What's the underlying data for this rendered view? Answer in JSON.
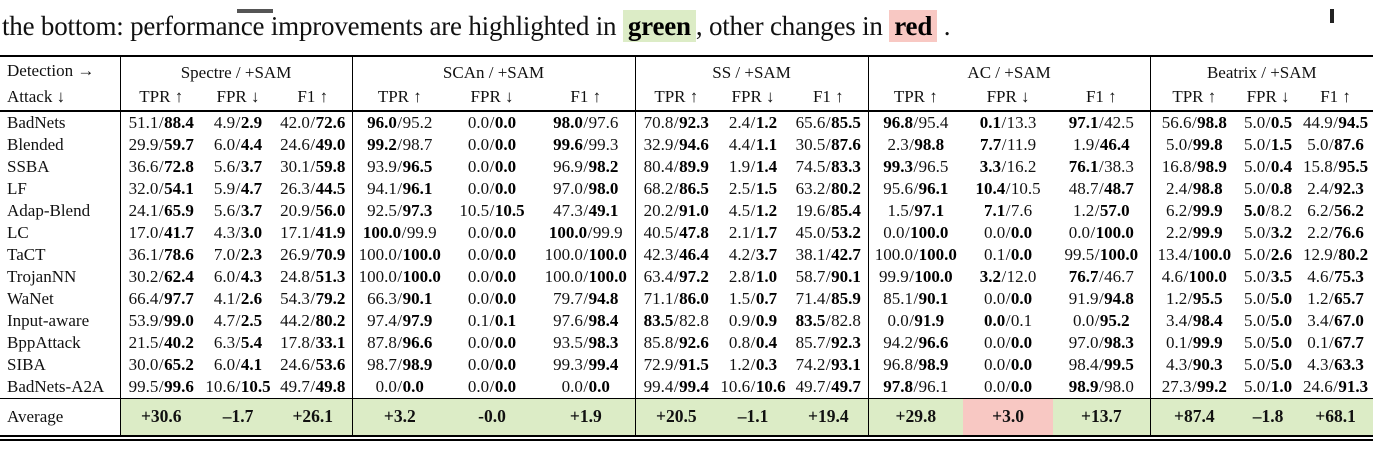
{
  "caption": {
    "prefix": "the bottom: performance improvements are highlighted in ",
    "green_word": "green",
    "mid": ", other changes in ",
    "red_word": "red",
    "suffix": " ."
  },
  "colors": {
    "green_highlight": "#dcecc6",
    "red_highlight": "#f8c8c3"
  },
  "table": {
    "sep": "/",
    "corner": {
      "line1": "Detection →",
      "line2": "Attack ↓"
    },
    "groups": [
      {
        "label": "Spectre / +SAM"
      },
      {
        "label": "SCAn / +SAM"
      },
      {
        "label": "SS / +SAM"
      },
      {
        "label": "AC / +SAM"
      },
      {
        "label": "Beatrix / +SAM"
      }
    ],
    "metrics": [
      "TPR ↑",
      "FPR ↓",
      "F1 ↑"
    ],
    "rows": [
      {
        "attack": "BadNets",
        "cells": [
          [
            "51.1",
            "88.4",
            "r"
          ],
          [
            "4.9",
            "2.9",
            "r"
          ],
          [
            "42.0",
            "72.6",
            "r"
          ],
          [
            "96.0",
            "95.2",
            "l"
          ],
          [
            "0.0",
            "0.0",
            "r"
          ],
          [
            "98.0",
            "97.6",
            "l"
          ],
          [
            "70.8",
            "92.3",
            "r"
          ],
          [
            "2.4",
            "1.2",
            "r"
          ],
          [
            "65.6",
            "85.5",
            "r"
          ],
          [
            "96.8",
            "95.4",
            "l"
          ],
          [
            "0.1",
            "13.3",
            "l"
          ],
          [
            "97.1",
            "42.5",
            "l"
          ],
          [
            "56.6",
            "98.8",
            "r"
          ],
          [
            "5.0",
            "0.5",
            "r"
          ],
          [
            "44.9",
            "94.5",
            "r"
          ]
        ]
      },
      {
        "attack": "Blended",
        "cells": [
          [
            "29.9",
            "59.7",
            "r"
          ],
          [
            "6.0",
            "4.4",
            "r"
          ],
          [
            "24.6",
            "49.0",
            "r"
          ],
          [
            "99.2",
            "98.7",
            "l"
          ],
          [
            "0.0",
            "0.0",
            "r"
          ],
          [
            "99.6",
            "99.3",
            "l"
          ],
          [
            "32.9",
            "94.6",
            "r"
          ],
          [
            "4.4",
            "1.1",
            "r"
          ],
          [
            "30.5",
            "87.6",
            "r"
          ],
          [
            "2.3",
            "98.8",
            "r"
          ],
          [
            "7.7",
            "11.9",
            "l"
          ],
          [
            "1.9",
            "46.4",
            "r"
          ],
          [
            "5.0",
            "99.8",
            "r"
          ],
          [
            "5.0",
            "1.5",
            "r"
          ],
          [
            "5.0",
            "87.6",
            "r"
          ]
        ]
      },
      {
        "attack": "SSBA",
        "cells": [
          [
            "36.6",
            "72.8",
            "r"
          ],
          [
            "5.6",
            "3.7",
            "r"
          ],
          [
            "30.1",
            "59.8",
            "r"
          ],
          [
            "93.9",
            "96.5",
            "r"
          ],
          [
            "0.0",
            "0.0",
            "r"
          ],
          [
            "96.9",
            "98.2",
            "r"
          ],
          [
            "80.4",
            "89.9",
            "r"
          ],
          [
            "1.9",
            "1.4",
            "r"
          ],
          [
            "74.5",
            "83.3",
            "r"
          ],
          [
            "99.3",
            "96.5",
            "l"
          ],
          [
            "3.3",
            "16.2",
            "l"
          ],
          [
            "76.1",
            "38.3",
            "l"
          ],
          [
            "16.8",
            "98.9",
            "r"
          ],
          [
            "5.0",
            "0.4",
            "r"
          ],
          [
            "15.8",
            "95.5",
            "r"
          ]
        ]
      },
      {
        "attack": "LF",
        "cells": [
          [
            "32.0",
            "54.1",
            "r"
          ],
          [
            "5.9",
            "4.7",
            "r"
          ],
          [
            "26.3",
            "44.5",
            "r"
          ],
          [
            "94.1",
            "96.1",
            "r"
          ],
          [
            "0.0",
            "0.0",
            "r"
          ],
          [
            "97.0",
            "98.0",
            "r"
          ],
          [
            "68.2",
            "86.5",
            "r"
          ],
          [
            "2.5",
            "1.5",
            "r"
          ],
          [
            "63.2",
            "80.2",
            "r"
          ],
          [
            "95.6",
            "96.1",
            "r"
          ],
          [
            "10.4",
            "10.5",
            "l"
          ],
          [
            "48.7",
            "48.7",
            "r"
          ],
          [
            "2.4",
            "98.8",
            "r"
          ],
          [
            "5.0",
            "0.8",
            "r"
          ],
          [
            "2.4",
            "92.3",
            "r"
          ]
        ]
      },
      {
        "attack": "Adap-Blend",
        "cells": [
          [
            "24.1",
            "65.9",
            "r"
          ],
          [
            "5.6",
            "3.7",
            "r"
          ],
          [
            "20.9",
            "56.0",
            "r"
          ],
          [
            "92.5",
            "97.3",
            "r"
          ],
          [
            "10.5",
            "10.5",
            "r"
          ],
          [
            "47.3",
            "49.1",
            "r"
          ],
          [
            "20.2",
            "91.0",
            "r"
          ],
          [
            "4.5",
            "1.2",
            "r"
          ],
          [
            "19.6",
            "85.4",
            "r"
          ],
          [
            "1.5",
            "97.1",
            "r"
          ],
          [
            "7.1",
            "7.6",
            "l"
          ],
          [
            "1.2",
            "57.0",
            "r"
          ],
          [
            "6.2",
            "99.9",
            "r"
          ],
          [
            "5.0",
            "8.2",
            "l"
          ],
          [
            "6.2",
            "56.2",
            "r"
          ]
        ]
      },
      {
        "attack": "LC",
        "cells": [
          [
            "17.0",
            "41.7",
            "r"
          ],
          [
            "4.3",
            "3.0",
            "r"
          ],
          [
            "17.1",
            "41.9",
            "r"
          ],
          [
            "100.0",
            "99.9",
            "l"
          ],
          [
            "0.0",
            "0.0",
            "r"
          ],
          [
            "100.0",
            "99.9",
            "l"
          ],
          [
            "40.5",
            "47.8",
            "r"
          ],
          [
            "2.1",
            "1.7",
            "r"
          ],
          [
            "45.0",
            "53.2",
            "r"
          ],
          [
            "0.0",
            "100.0",
            "r"
          ],
          [
            "0.0",
            "0.0",
            "r"
          ],
          [
            "0.0",
            "100.0",
            "r"
          ],
          [
            "2.2",
            "99.9",
            "r"
          ],
          [
            "5.0",
            "3.2",
            "r"
          ],
          [
            "2.2",
            "76.6",
            "r"
          ]
        ]
      },
      {
        "attack": "TaCT",
        "cells": [
          [
            "36.1",
            "78.6",
            "r"
          ],
          [
            "7.0",
            "2.3",
            "r"
          ],
          [
            "26.9",
            "70.9",
            "r"
          ],
          [
            "100.0",
            "100.0",
            "r"
          ],
          [
            "0.0",
            "0.0",
            "r"
          ],
          [
            "100.0",
            "100.0",
            "r"
          ],
          [
            "42.3",
            "46.4",
            "r"
          ],
          [
            "4.2",
            "3.7",
            "r"
          ],
          [
            "38.1",
            "42.7",
            "r"
          ],
          [
            "100.0",
            "100.0",
            "r"
          ],
          [
            "0.1",
            "0.0",
            "r"
          ],
          [
            "99.5",
            "100.0",
            "r"
          ],
          [
            "13.4",
            "100.0",
            "r"
          ],
          [
            "5.0",
            "2.6",
            "r"
          ],
          [
            "12.9",
            "80.2",
            "r"
          ]
        ]
      },
      {
        "attack": "TrojanNN",
        "cells": [
          [
            "30.2",
            "62.4",
            "r"
          ],
          [
            "6.0",
            "4.3",
            "r"
          ],
          [
            "24.8",
            "51.3",
            "r"
          ],
          [
            "100.0",
            "100.0",
            "r"
          ],
          [
            "0.0",
            "0.0",
            "r"
          ],
          [
            "100.0",
            "100.0",
            "r"
          ],
          [
            "63.4",
            "97.2",
            "r"
          ],
          [
            "2.8",
            "1.0",
            "r"
          ],
          [
            "58.7",
            "90.1",
            "r"
          ],
          [
            "99.9",
            "100.0",
            "r"
          ],
          [
            "3.2",
            "12.0",
            "l"
          ],
          [
            "76.7",
            "46.7",
            "l"
          ],
          [
            "4.6",
            "100.0",
            "r"
          ],
          [
            "5.0",
            "3.5",
            "r"
          ],
          [
            "4.6",
            "75.3",
            "r"
          ]
        ]
      },
      {
        "attack": "WaNet",
        "cells": [
          [
            "66.4",
            "97.7",
            "r"
          ],
          [
            "4.1",
            "2.6",
            "r"
          ],
          [
            "54.3",
            "79.2",
            "r"
          ],
          [
            "66.3",
            "90.1",
            "r"
          ],
          [
            "0.0",
            "0.0",
            "r"
          ],
          [
            "79.7",
            "94.8",
            "r"
          ],
          [
            "71.1",
            "86.0",
            "r"
          ],
          [
            "1.5",
            "0.7",
            "r"
          ],
          [
            "71.4",
            "85.9",
            "r"
          ],
          [
            "85.1",
            "90.1",
            "r"
          ],
          [
            "0.0",
            "0.0",
            "r"
          ],
          [
            "91.9",
            "94.8",
            "r"
          ],
          [
            "1.2",
            "95.5",
            "r"
          ],
          [
            "5.0",
            "5.0",
            "r"
          ],
          [
            "1.2",
            "65.7",
            "r"
          ]
        ]
      },
      {
        "attack": "Input-aware",
        "cells": [
          [
            "53.9",
            "99.0",
            "r"
          ],
          [
            "4.7",
            "2.5",
            "r"
          ],
          [
            "44.2",
            "80.2",
            "r"
          ],
          [
            "97.4",
            "97.9",
            "r"
          ],
          [
            "0.1",
            "0.1",
            "r"
          ],
          [
            "97.6",
            "98.4",
            "r"
          ],
          [
            "83.5",
            "82.8",
            "l"
          ],
          [
            "0.9",
            "0.9",
            "r"
          ],
          [
            "83.5",
            "82.8",
            "l"
          ],
          [
            "0.0",
            "91.9",
            "r"
          ],
          [
            "0.0",
            "0.1",
            "l"
          ],
          [
            "0.0",
            "95.2",
            "r"
          ],
          [
            "3.4",
            "98.4",
            "r"
          ],
          [
            "5.0",
            "5.0",
            "r"
          ],
          [
            "3.4",
            "67.0",
            "r"
          ]
        ]
      },
      {
        "attack": "BppAttack",
        "cells": [
          [
            "21.5",
            "40.2",
            "r"
          ],
          [
            "6.3",
            "5.4",
            "r"
          ],
          [
            "17.8",
            "33.1",
            "r"
          ],
          [
            "87.8",
            "96.6",
            "r"
          ],
          [
            "0.0",
            "0.0",
            "r"
          ],
          [
            "93.5",
            "98.3",
            "r"
          ],
          [
            "85.8",
            "92.6",
            "r"
          ],
          [
            "0.8",
            "0.4",
            "r"
          ],
          [
            "85.7",
            "92.3",
            "r"
          ],
          [
            "94.2",
            "96.6",
            "r"
          ],
          [
            "0.0",
            "0.0",
            "r"
          ],
          [
            "97.0",
            "98.3",
            "r"
          ],
          [
            "0.1",
            "99.9",
            "r"
          ],
          [
            "5.0",
            "5.0",
            "r"
          ],
          [
            "0.1",
            "67.7",
            "r"
          ]
        ]
      },
      {
        "attack": "SIBA",
        "cells": [
          [
            "30.0",
            "65.2",
            "r"
          ],
          [
            "6.0",
            "4.1",
            "r"
          ],
          [
            "24.6",
            "53.6",
            "r"
          ],
          [
            "98.7",
            "98.9",
            "r"
          ],
          [
            "0.0",
            "0.0",
            "r"
          ],
          [
            "99.3",
            "99.4",
            "r"
          ],
          [
            "72.9",
            "91.5",
            "r"
          ],
          [
            "1.2",
            "0.3",
            "r"
          ],
          [
            "74.2",
            "93.1",
            "r"
          ],
          [
            "96.8",
            "98.9",
            "r"
          ],
          [
            "0.0",
            "0.0",
            "r"
          ],
          [
            "98.4",
            "99.5",
            "r"
          ],
          [
            "4.3",
            "90.3",
            "r"
          ],
          [
            "5.0",
            "5.0",
            "r"
          ],
          [
            "4.3",
            "63.3",
            "r"
          ]
        ]
      },
      {
        "attack": "BadNets-A2A",
        "cells": [
          [
            "99.5",
            "99.6",
            "r"
          ],
          [
            "10.6",
            "10.5",
            "r"
          ],
          [
            "49.7",
            "49.8",
            "r"
          ],
          [
            "0.0",
            "0.0",
            "r"
          ],
          [
            "0.0",
            "0.0",
            "r"
          ],
          [
            "0.0",
            "0.0",
            "r"
          ],
          [
            "99.4",
            "99.4",
            "r"
          ],
          [
            "10.6",
            "10.6",
            "r"
          ],
          [
            "49.7",
            "49.7",
            "r"
          ],
          [
            "97.8",
            "96.1",
            "l"
          ],
          [
            "0.0",
            "0.0",
            "r"
          ],
          [
            "98.9",
            "98.0",
            "l"
          ],
          [
            "27.3",
            "99.2",
            "r"
          ],
          [
            "5.0",
            "1.0",
            "r"
          ],
          [
            "24.6",
            "91.3",
            "r"
          ]
        ]
      }
    ],
    "average": {
      "label": "Average",
      "values": [
        {
          "text": "+30.6",
          "bg": "green"
        },
        {
          "text": "–1.7",
          "bg": "green"
        },
        {
          "text": "+26.1",
          "bg": "green"
        },
        {
          "text": "+3.2",
          "bg": "green"
        },
        {
          "text": "-0.0",
          "bg": "green"
        },
        {
          "text": "+1.9",
          "bg": "green"
        },
        {
          "text": "+20.5",
          "bg": "green"
        },
        {
          "text": "–1.1",
          "bg": "green"
        },
        {
          "text": "+19.4",
          "bg": "green"
        },
        {
          "text": "+29.8",
          "bg": "green"
        },
        {
          "text": "+3.0",
          "bg": "red"
        },
        {
          "text": "+13.7",
          "bg": "green"
        },
        {
          "text": "+87.4",
          "bg": "green"
        },
        {
          "text": "–1.8",
          "bg": "green"
        },
        {
          "text": "+68.1",
          "bg": "green"
        }
      ]
    }
  }
}
